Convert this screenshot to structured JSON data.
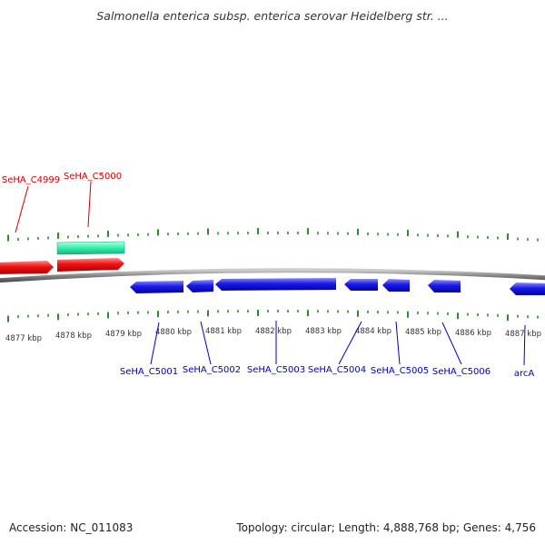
{
  "title": "Salmonella enterica subsp. enterica serovar Heidelberg str. ...",
  "footer": {
    "accession": "Accession: NC_011083",
    "summary": "Topology: circular; Length: 4,888,768 bp; Genes: 4,756"
  },
  "colors": {
    "forward_gene": "#ee1111",
    "reverse_gene": "#1a1ae6",
    "rna_feature": "#33eeaa",
    "ticks": "#2e8b2e",
    "backbone": "#777777",
    "forward_label": "#cc0000",
    "reverse_label": "#0000bb"
  },
  "scale": {
    "ticks_kbp": [
      "4877 kbp",
      "4878 kbp",
      "4879 kbp",
      "4880 kbp",
      "4881 kbp",
      "4882 kbp",
      "4883 kbp",
      "4884 kbp",
      "4885 kbp",
      "4886 kbp",
      "4887 kbp"
    ]
  },
  "features": {
    "forward_genes": [
      {
        "label": "SeHA_C4999"
      },
      {
        "label": "SeHA_C5000"
      }
    ],
    "reverse_genes": [
      {
        "label": "SeHA_C5001"
      },
      {
        "label": "SeHA_C5002"
      },
      {
        "label": "SeHA_C5003"
      },
      {
        "label": "SeHA_C5004"
      },
      {
        "label": "SeHA_C5005"
      },
      {
        "label": "SeHA_C5006"
      },
      {
        "label": "arcA"
      }
    ]
  }
}
